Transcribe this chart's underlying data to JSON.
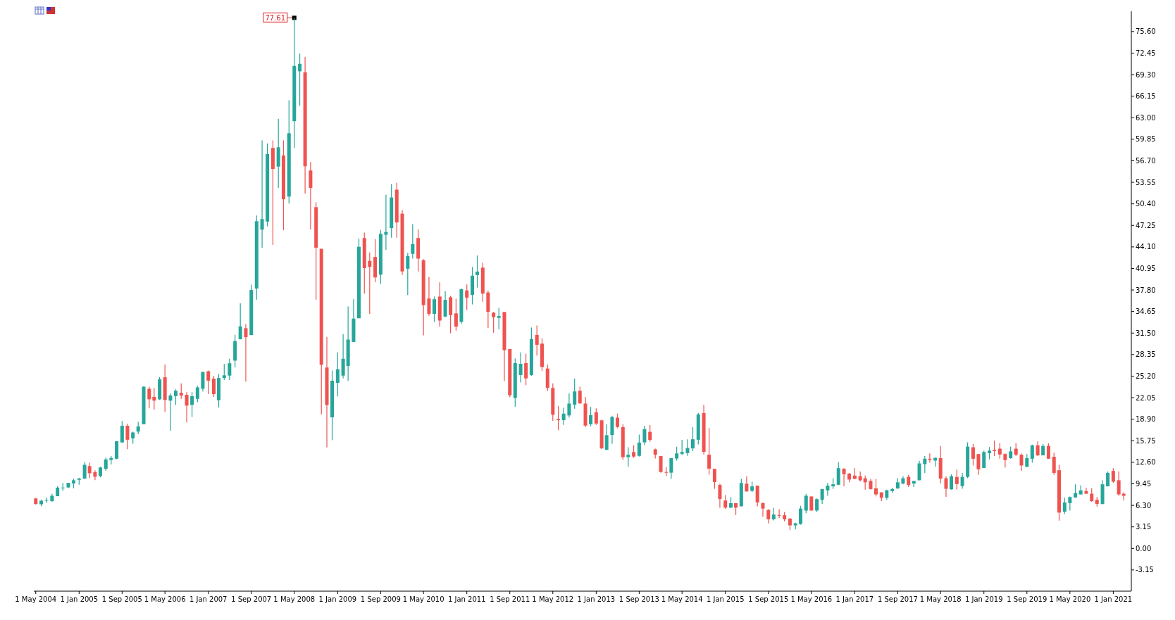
{
  "chart_data": {
    "type": "candlestick",
    "x": [
      "2004-05",
      "2004-06",
      "2004-07",
      "2004-08",
      "2004-09",
      "2004-10",
      "2004-11",
      "2004-12",
      "2005-01",
      "2005-02",
      "2005-03",
      "2005-04",
      "2005-05",
      "2005-06",
      "2005-07",
      "2005-08",
      "2005-09",
      "2005-10",
      "2005-11",
      "2005-12",
      "2006-01",
      "2006-02",
      "2006-03",
      "2006-04",
      "2006-05",
      "2006-06",
      "2006-07",
      "2006-08",
      "2006-09",
      "2006-10",
      "2006-11",
      "2006-12",
      "2007-01",
      "2007-02",
      "2007-03",
      "2007-04",
      "2007-05",
      "2007-06",
      "2007-07",
      "2007-08",
      "2007-09",
      "2007-10",
      "2007-11",
      "2007-12",
      "2008-01",
      "2008-02",
      "2008-03",
      "2008-04",
      "2008-05",
      "2008-06",
      "2008-07",
      "2008-08",
      "2008-09",
      "2008-10",
      "2008-11",
      "2008-12",
      "2009-01",
      "2009-02",
      "2009-03",
      "2009-04",
      "2009-05",
      "2009-06",
      "2009-07",
      "2009-08",
      "2009-09",
      "2009-10",
      "2009-11",
      "2009-12",
      "2010-01",
      "2010-02",
      "2010-03",
      "2010-04",
      "2010-05",
      "2010-06",
      "2010-07",
      "2010-08",
      "2010-09",
      "2010-10",
      "2010-11",
      "2010-12",
      "2011-01",
      "2011-02",
      "2011-03",
      "2011-04",
      "2011-05",
      "2011-06",
      "2011-07",
      "2011-08",
      "2011-09",
      "2011-10",
      "2011-11",
      "2011-12",
      "2012-01",
      "2012-02",
      "2012-03",
      "2012-04",
      "2012-05",
      "2012-06",
      "2012-07",
      "2012-08",
      "2012-09",
      "2012-10",
      "2012-11",
      "2012-12",
      "2013-01",
      "2013-02",
      "2013-03",
      "2013-04",
      "2013-05",
      "2013-06",
      "2013-07",
      "2013-08",
      "2013-09",
      "2013-10",
      "2013-11",
      "2013-12",
      "2014-01",
      "2014-02",
      "2014-03",
      "2014-04",
      "2014-05",
      "2014-06",
      "2014-07",
      "2014-08",
      "2014-09",
      "2014-10",
      "2014-11",
      "2014-12",
      "2015-01",
      "2015-02",
      "2015-03",
      "2015-04",
      "2015-05",
      "2015-06",
      "2015-07",
      "2015-08",
      "2015-09",
      "2015-10",
      "2015-11",
      "2015-12",
      "2016-01",
      "2016-02",
      "2016-03",
      "2016-04",
      "2016-05",
      "2016-06",
      "2016-07",
      "2016-08",
      "2016-09",
      "2016-10",
      "2016-11",
      "2016-12",
      "2017-01",
      "2017-02",
      "2017-03",
      "2017-04",
      "2017-05",
      "2017-06",
      "2017-07",
      "2017-08",
      "2017-09",
      "2017-10",
      "2017-11",
      "2017-12",
      "2018-01",
      "2018-02",
      "2018-03",
      "2018-04",
      "2018-05",
      "2018-06",
      "2018-07",
      "2018-08",
      "2018-09",
      "2018-10",
      "2018-11",
      "2018-12",
      "2019-01",
      "2019-02",
      "2019-03",
      "2019-04",
      "2019-05",
      "2019-06",
      "2019-07",
      "2019-08",
      "2019-09",
      "2019-10",
      "2019-11",
      "2019-12",
      "2020-01",
      "2020-02",
      "2020-03",
      "2020-04",
      "2020-05",
      "2020-06",
      "2020-07",
      "2020-08",
      "2020-09",
      "2020-10",
      "2020-11",
      "2020-12",
      "2021-01",
      "2021-02",
      "2021-03"
    ],
    "ohlc": [
      [
        7.3,
        7.4,
        6.4,
        6.5
      ],
      [
        6.46,
        7.12,
        6.17,
        6.98
      ],
      [
        7.0,
        7.44,
        6.66,
        7.1
      ],
      [
        6.92,
        7.97,
        6.82,
        7.7
      ],
      [
        7.64,
        9.08,
        7.64,
        8.89
      ],
      [
        8.85,
        9.58,
        8.43,
        8.9
      ],
      [
        8.92,
        9.6,
        8.82,
        9.58
      ],
      [
        9.51,
        10.2,
        8.79,
        9.97
      ],
      [
        10.04,
        10.33,
        9.31,
        10.23
      ],
      [
        10.2,
        12.63,
        10.2,
        12.23
      ],
      [
        12.04,
        12.53,
        10.26,
        10.99
      ],
      [
        11.15,
        11.44,
        10.0,
        10.49
      ],
      [
        10.59,
        11.94,
        10.4,
        11.84
      ],
      [
        11.64,
        13.32,
        11.35,
        13.02
      ],
      [
        12.95,
        13.51,
        12.27,
        13.22
      ],
      [
        13.12,
        15.68,
        13.05,
        15.68
      ],
      [
        15.51,
        18.63,
        15.41,
        17.94
      ],
      [
        17.94,
        18.24,
        14.53,
        15.9
      ],
      [
        16.1,
        17.06,
        15.32,
        16.96
      ],
      [
        17.09,
        18.53,
        16.7,
        17.84
      ],
      [
        18.17,
        23.75,
        18.17,
        23.65
      ],
      [
        23.35,
        23.65,
        20.5,
        21.81
      ],
      [
        22.17,
        23.45,
        20.3,
        21.62
      ],
      [
        21.81,
        25.03,
        21.71,
        24.73
      ],
      [
        25.03,
        26.9,
        20.01,
        21.71
      ],
      [
        21.62,
        22.67,
        17.19,
        22.37
      ],
      [
        22.27,
        23.26,
        20.99,
        23.06
      ],
      [
        22.76,
        24.14,
        21.88,
        22.37
      ],
      [
        22.47,
        22.86,
        18.43,
        20.89
      ],
      [
        20.99,
        22.86,
        19.22,
        22.27
      ],
      [
        21.88,
        23.75,
        21.39,
        23.55
      ],
      [
        23.35,
        25.81,
        22.96,
        25.81
      ],
      [
        25.91,
        26.01,
        22.57,
        24.54
      ],
      [
        24.83,
        25.23,
        22.17,
        22.57
      ],
      [
        21.68,
        25.52,
        20.6,
        24.93
      ],
      [
        24.93,
        26.99,
        24.63,
        25.32
      ],
      [
        25.28,
        27.74,
        24.62,
        27.08
      ],
      [
        27.47,
        31.25,
        26.46,
        30.33
      ],
      [
        30.59,
        35.86,
        30.59,
        32.48
      ],
      [
        32.21,
        32.79,
        24.4,
        30.9
      ],
      [
        31.21,
        38.59,
        31.21,
        37.8
      ],
      [
        38.02,
        48.69,
        36.39,
        47.86
      ],
      [
        46.63,
        59.68,
        43.99,
        48.17
      ],
      [
        47.81,
        59.24,
        47.11,
        57.7
      ],
      [
        58.58,
        59.68,
        44.39,
        55.5
      ],
      [
        55.85,
        62.84,
        52.74,
        58.67
      ],
      [
        57.48,
        59.68,
        46.54,
        51.07
      ],
      [
        51.46,
        65.56,
        50.45,
        60.73
      ],
      [
        62.49,
        77.61,
        58.58,
        70.57
      ],
      [
        69.78,
        72.38,
        64.73,
        70.88
      ],
      [
        69.65,
        71.89,
        51.9,
        55.9
      ],
      [
        55.28,
        56.51,
        46.63,
        52.74
      ],
      [
        49.92,
        50.63,
        36.39,
        43.99
      ],
      [
        43.82,
        43.82,
        19.61,
        26.86
      ],
      [
        26.46,
        30.94,
        14.77,
        20.97
      ],
      [
        19.17,
        26.02,
        15.83,
        24.53
      ],
      [
        24.22,
        28.66,
        22.24,
        26.2
      ],
      [
        25.28,
        31.34,
        24.88,
        27.74
      ],
      [
        26.68,
        35.38,
        24.49,
        30.55
      ],
      [
        30.2,
        36.44,
        30.2,
        33.62
      ],
      [
        33.67,
        45.31,
        33.67,
        44.12
      ],
      [
        45.4,
        46.19,
        37.27,
        41.0
      ],
      [
        42.06,
        43.29,
        34.32,
        41.18
      ],
      [
        42.63,
        45.22,
        38.94,
        39.64
      ],
      [
        40.04,
        46.59,
        38.72,
        46.01
      ],
      [
        45.88,
        51.73,
        43.64,
        46.28
      ],
      [
        46.85,
        53.31,
        45.44,
        51.33
      ],
      [
        52.47,
        53.48,
        45.44,
        47.68
      ],
      [
        48.96,
        49.48,
        40.0,
        40.52
      ],
      [
        40.91,
        43.21,
        37.07,
        42.75
      ],
      [
        43.08,
        47.44,
        42.39,
        44.52
      ],
      [
        45.4,
        46.68,
        40.52,
        42.39
      ],
      [
        42.16,
        42.32,
        31.17,
        35.59
      ],
      [
        36.55,
        39.7,
        34.02,
        34.31
      ],
      [
        34.31,
        36.84,
        33.13,
        36.45
      ],
      [
        36.84,
        38.91,
        32.44,
        33.33
      ],
      [
        33.92,
        37.63,
        33.82,
        36.35
      ],
      [
        36.74,
        36.94,
        31.46,
        34.12
      ],
      [
        34.38,
        36.55,
        31.85,
        32.44
      ],
      [
        33.13,
        38.02,
        32.84,
        37.92
      ],
      [
        37.73,
        38.61,
        34.91,
        36.68
      ],
      [
        37.07,
        41.17,
        35.69,
        39.89
      ],
      [
        39.98,
        42.85,
        38.15,
        40.49
      ],
      [
        41.07,
        41.76,
        36.09,
        37.27
      ],
      [
        37.43,
        37.73,
        32.25,
        34.61
      ],
      [
        34.48,
        34.58,
        31.56,
        33.82
      ],
      [
        33.72,
        35.17,
        32.05,
        33.99
      ],
      [
        34.58,
        34.58,
        24.47,
        29.0
      ],
      [
        29.16,
        29.16,
        22.11,
        22.41
      ],
      [
        22.01,
        27.79,
        20.73,
        27.1
      ],
      [
        25.36,
        28.67,
        24.28,
        27.0
      ],
      [
        27.1,
        28.48,
        23.88,
        24.87
      ],
      [
        25.36,
        32.31,
        25.26,
        30.64
      ],
      [
        31.23,
        32.61,
        28.21,
        29.79
      ],
      [
        29.95,
        30.74,
        25.95,
        26.54
      ],
      [
        26.31,
        26.9,
        23.0,
        23.49
      ],
      [
        23.46,
        24.14,
        18.67,
        19.55
      ],
      [
        18.93,
        20.8,
        17.29,
        18.76
      ],
      [
        18.76,
        20.6,
        18.08,
        19.71
      ],
      [
        19.45,
        22.67,
        19.16,
        21.19
      ],
      [
        21.03,
        24.83,
        20.44,
        22.96
      ],
      [
        23.06,
        23.65,
        21.13,
        21.22
      ],
      [
        21.19,
        22.17,
        17.77,
        17.97
      ],
      [
        18.17,
        20.7,
        17.87,
        19.51
      ],
      [
        19.91,
        20.5,
        18.07,
        18.27
      ],
      [
        18.73,
        18.82,
        14.53,
        14.63
      ],
      [
        14.43,
        18.14,
        14.33,
        16.56
      ],
      [
        16.59,
        19.41,
        15.31,
        19.22
      ],
      [
        19.12,
        19.71,
        17.58,
        17.77
      ],
      [
        17.74,
        18.14,
        12.95,
        13.35
      ],
      [
        13.35,
        14.79,
        11.97,
        13.71
      ],
      [
        14.1,
        15.08,
        13.25,
        13.44
      ],
      [
        13.54,
        16.66,
        13.44,
        15.48
      ],
      [
        15.51,
        17.94,
        15.12,
        17.45
      ],
      [
        17.05,
        18.04,
        15.61,
        15.87
      ],
      [
        14.49,
        14.59,
        13.15,
        13.71
      ],
      [
        13.51,
        13.51,
        11.08,
        11.18
      ],
      [
        11.18,
        11.87,
        10.59,
        11.08
      ],
      [
        11.08,
        13.21,
        10.2,
        13.21
      ],
      [
        13.15,
        14.89,
        12.85,
        13.9
      ],
      [
        13.84,
        15.87,
        13.64,
        14.1
      ],
      [
        13.94,
        15.97,
        13.54,
        14.69
      ],
      [
        14.63,
        17.74,
        14.23,
        15.97
      ],
      [
        15.9,
        19.81,
        15.22,
        19.61
      ],
      [
        19.81,
        20.99,
        13.74,
        14.13
      ],
      [
        13.71,
        17.64,
        10.79,
        11.67
      ],
      [
        11.64,
        11.64,
        8.72,
        9.7
      ],
      [
        9.28,
        9.47,
        5.96,
        7.24
      ],
      [
        7.01,
        7.8,
        5.77,
        5.96
      ],
      [
        5.96,
        7.5,
        5.96,
        6.62
      ],
      [
        6.62,
        6.62,
        4.88,
        5.96
      ],
      [
        6.16,
        10.16,
        6.16,
        9.57
      ],
      [
        9.47,
        10.56,
        8.33,
        8.33
      ],
      [
        8.42,
        9.77,
        8.23,
        9.08
      ],
      [
        9.18,
        9.18,
        6.16,
        6.72
      ],
      [
        6.62,
        6.72,
        4.65,
        5.83
      ],
      [
        5.63,
        5.73,
        3.67,
        4.26
      ],
      [
        4.26,
        5.93,
        4.09,
        4.95
      ],
      [
        4.88,
        5.73,
        4.45,
        4.81
      ],
      [
        4.85,
        5.34,
        3.96,
        4.26
      ],
      [
        4.36,
        4.45,
        2.68,
        3.37
      ],
      [
        3.37,
        3.77,
        2.78,
        3.67
      ],
      [
        3.57,
        6.23,
        3.47,
        5.83
      ],
      [
        5.54,
        7.99,
        5.14,
        7.7
      ],
      [
        7.6,
        7.6,
        5.54,
        5.54
      ],
      [
        5.54,
        7.31,
        5.34,
        7.21
      ],
      [
        7.11,
        8.69,
        6.52,
        8.69
      ],
      [
        8.49,
        9.57,
        7.7,
        9.18
      ],
      [
        9.08,
        10.26,
        8.69,
        9.38
      ],
      [
        9.31,
        12.62,
        9.24,
        11.74
      ],
      [
        11.64,
        11.74,
        9.08,
        10.85
      ],
      [
        10.95,
        11.05,
        9.67,
        10.07
      ],
      [
        10.66,
        11.74,
        10.16,
        10.16
      ],
      [
        10.56,
        11.25,
        9.77,
        9.97
      ],
      [
        10.26,
        10.66,
        8.59,
        9.67
      ],
      [
        9.87,
        10.16,
        8.59,
        8.69
      ],
      [
        8.78,
        10.16,
        7.6,
        7.9
      ],
      [
        8.2,
        8.2,
        6.92,
        7.41
      ],
      [
        7.41,
        8.59,
        7.11,
        8.49
      ],
      [
        8.39,
        8.88,
        8.1,
        8.69
      ],
      [
        8.78,
        10.26,
        8.69,
        9.67
      ],
      [
        9.48,
        10.56,
        9.38,
        10.26
      ],
      [
        10.46,
        10.75,
        8.98,
        9.28
      ],
      [
        9.48,
        9.87,
        8.98,
        9.87
      ],
      [
        9.97,
        12.82,
        9.97,
        12.43
      ],
      [
        12.33,
        13.51,
        11.05,
        13.12
      ],
      [
        13.12,
        13.9,
        12.53,
        12.95
      ],
      [
        12.85,
        13.31,
        11.97,
        13.25
      ],
      [
        13.21,
        14.99,
        9.51,
        10.2
      ],
      [
        10.26,
        10.52,
        7.54,
        8.72
      ],
      [
        8.65,
        10.85,
        8.59,
        10.56
      ],
      [
        10.46,
        11.54,
        8.62,
        9.41
      ],
      [
        9.11,
        11.05,
        8.72,
        10.46
      ],
      [
        10.46,
        15.51,
        10.26,
        14.89
      ],
      [
        14.79,
        15.28,
        12.13,
        13.12
      ],
      [
        13.8,
        13.8,
        10.75,
        11.57
      ],
      [
        11.77,
        14.3,
        11.77,
        14.1
      ],
      [
        13.94,
        14.82,
        13.02,
        14.3
      ],
      [
        14.4,
        15.77,
        13.51,
        14.23
      ],
      [
        14.59,
        15.38,
        13.12,
        13.74
      ],
      [
        13.8,
        13.9,
        11.84,
        12.92
      ],
      [
        13.21,
        14.89,
        13.12,
        14.2
      ],
      [
        14.59,
        15.38,
        13.51,
        13.71
      ],
      [
        13.71,
        13.87,
        11.34,
        12.13
      ],
      [
        11.93,
        13.8,
        11.93,
        13.21
      ],
      [
        13.12,
        15.18,
        12.53,
        15.08
      ],
      [
        15.08,
        15.67,
        13.51,
        13.61
      ],
      [
        13.61,
        15.28,
        13.61,
        14.99
      ],
      [
        14.99,
        15.38,
        13.12,
        13.12
      ],
      [
        13.41,
        14.0,
        10.75,
        11.05
      ],
      [
        11.44,
        12.23,
        4.06,
        5.24
      ],
      [
        5.37,
        7.41,
        5.04,
        6.72
      ],
      [
        6.62,
        7.6,
        5.54,
        7.51
      ],
      [
        7.44,
        9.38,
        7.44,
        8.1
      ],
      [
        7.9,
        9.21,
        7.9,
        8.49
      ],
      [
        8.39,
        8.88,
        8.0,
        8.0
      ],
      [
        8.0,
        8.78,
        6.82,
        6.92
      ],
      [
        7.11,
        7.51,
        6.13,
        6.52
      ],
      [
        6.49,
        9.97,
        6.49,
        9.38
      ],
      [
        9.08,
        11.25,
        9.08,
        11.05
      ],
      [
        11.34,
        11.74,
        9.61,
        9.77
      ],
      [
        9.97,
        11.25,
        7.7,
        7.9
      ],
      [
        8.0,
        8.2,
        7.01,
        7.7
      ]
    ],
    "colors": [
      "#ef5350",
      "#26a69a",
      "#26a69a",
      "#26a69a",
      "#26a69a",
      "#26a69a",
      "#26a69a",
      "#26a69a",
      "#26a69a",
      "#26a69a",
      "#ef5350",
      "#ef5350",
      "#26a69a",
      "#26a69a",
      "#26a69a",
      "#26a69a",
      "#26a69a",
      "#ef5350",
      "#26a69a",
      "#26a69a",
      "#26a69a",
      "#ef5350",
      "#ef5350",
      "#26a69a",
      "#ef5350",
      "#26a69a",
      "#26a69a",
      "#ef5350",
      "#ef5350",
      "#26a69a",
      "#26a69a",
      "#26a69a",
      "#ef5350",
      "#ef5350",
      "#26a69a",
      "#26a69a",
      "#26a69a",
      "#26a69a",
      "#26a69a",
      "#ef5350",
      "#26a69a",
      "#26a69a",
      "#26a69a",
      "#26a69a",
      "#ef5350",
      "#26a69a",
      "#ef5350",
      "#26a69a",
      "#26a69a",
      "#26a69a",
      "#ef5350",
      "#ef5350",
      "#ef5350",
      "#ef5350",
      "#ef5350",
      "#26a69a",
      "#26a69a",
      "#26a69a",
      "#26a69a",
      "#26a69a",
      "#26a69a",
      "#ef5350",
      "#ef5350",
      "#ef5350",
      "#26a69a",
      "#26a69a",
      "#26a69a",
      "#ef5350",
      "#ef5350",
      "#26a69a",
      "#26a69a",
      "#ef5350",
      "#ef5350",
      "#ef5350",
      "#26a69a",
      "#ef5350",
      "#26a69a",
      "#ef5350",
      "#ef5350",
      "#26a69a",
      "#ef5350",
      "#26a69a",
      "#26a69a",
      "#ef5350",
      "#ef5350",
      "#ef5350",
      "#26a69a",
      "#ef5350",
      "#ef5350",
      "#26a69a",
      "#26a69a",
      "#ef5350",
      "#26a69a",
      "#ef5350",
      "#ef5350",
      "#ef5350",
      "#ef5350",
      "#ef5350",
      "#26a69a",
      "#26a69a",
      "#26a69a",
      "#ef5350",
      "#ef5350",
      "#26a69a",
      "#ef5350",
      "#ef5350",
      "#26a69a",
      "#26a69a",
      "#ef5350",
      "#ef5350",
      "#26a69a",
      "#ef5350",
      "#26a69a",
      "#26a69a",
      "#ef5350",
      "#ef5350",
      "#ef5350",
      "#ef5350",
      "#26a69a",
      "#26a69a",
      "#26a69a",
      "#26a69a",
      "#26a69a",
      "#26a69a",
      "#ef5350",
      "#ef5350",
      "#ef5350",
      "#ef5350",
      "#ef5350",
      "#26a69a",
      "#ef5350",
      "#26a69a",
      "#ef5350",
      "#26a69a",
      "#ef5350",
      "#ef5350",
      "#ef5350",
      "#26a69a",
      "#ef5350",
      "#ef5350",
      "#ef5350",
      "#26a69a",
      "#26a69a",
      "#26a69a",
      "#ef5350",
      "#26a69a",
      "#26a69a",
      "#26a69a",
      "#26a69a",
      "#26a69a",
      "#ef5350",
      "#ef5350",
      "#ef5350",
      "#ef5350",
      "#ef5350",
      "#ef5350",
      "#ef5350",
      "#ef5350",
      "#26a69a",
      "#26a69a",
      "#26a69a",
      "#26a69a",
      "#ef5350",
      "#26a69a",
      "#26a69a",
      "#26a69a",
      "#ef5350",
      "#26a69a",
      "#ef5350",
      "#ef5350",
      "#26a69a",
      "#ef5350",
      "#26a69a",
      "#26a69a",
      "#ef5350",
      "#ef5350",
      "#26a69a",
      "#26a69a",
      "#ef5350",
      "#ef5350",
      "#ef5350",
      "#26a69a",
      "#ef5350",
      "#ef5350",
      "#26a69a",
      "#26a69a",
      "#ef5350",
      "#26a69a",
      "#ef5350",
      "#ef5350",
      "#ef5350",
      "#26a69a",
      "#26a69a",
      "#26a69a",
      "#26a69a",
      "#ef5350",
      "#ef5350",
      "#ef5350",
      "#26a69a",
      "#26a69a",
      "#ef5350",
      "#ef5350",
      "#ef5350"
    ],
    "xlim": [
      "2004-04-20",
      "2021-04-13"
    ],
    "xticks": [
      {
        "value": "2004-05",
        "label": "1 May 2004"
      },
      {
        "value": "2005-01",
        "label": "1 Jan 2005"
      },
      {
        "value": "2005-09",
        "label": "1 Sep 2005"
      },
      {
        "value": "2006-05",
        "label": "1 May 2006"
      },
      {
        "value": "2007-01",
        "label": "1 Jan 2007"
      },
      {
        "value": "2007-09",
        "label": "1 Sep 2007"
      },
      {
        "value": "2008-05",
        "label": "1 May 2008"
      },
      {
        "value": "2009-01",
        "label": "1 Jan 2009"
      },
      {
        "value": "2009-09",
        "label": "1 Sep 2009"
      },
      {
        "value": "2010-05",
        "label": "1 May 2010"
      },
      {
        "value": "2011-01",
        "label": "1 Jan 2011"
      },
      {
        "value": "2011-09",
        "label": "1 Sep 2011"
      },
      {
        "value": "2012-05",
        "label": "1 May 2012"
      },
      {
        "value": "2013-01",
        "label": "1 Jan 2013"
      },
      {
        "value": "2013-09",
        "label": "1 Sep 2013"
      },
      {
        "value": "2014-05",
        "label": "1 May 2014"
      },
      {
        "value": "2015-01",
        "label": "1 Jan 2015"
      },
      {
        "value": "2015-09",
        "label": "1 Sep 2015"
      },
      {
        "value": "2016-05",
        "label": "1 May 2016"
      },
      {
        "value": "2017-01",
        "label": "1 Jan 2017"
      },
      {
        "value": "2017-09",
        "label": "1 Sep 2017"
      },
      {
        "value": "2018-05",
        "label": "1 May 2018"
      },
      {
        "value": "2019-01",
        "label": "1 Jan 2019"
      },
      {
        "value": "2019-09",
        "label": "1 Sep 2019"
      },
      {
        "value": "2020-05",
        "label": "1 May 2020"
      },
      {
        "value": "2021-01",
        "label": "1 Jan 2021"
      }
    ],
    "ylim": [
      -6.25,
      78.57
    ],
    "yticks": [
      {
        "value": -3.15,
        "label": "-3.15"
      },
      {
        "value": 0,
        "label": "0.00"
      },
      {
        "value": 3.15,
        "label": "3.15"
      },
      {
        "value": 6.3,
        "label": "6.30"
      },
      {
        "value": 9.45,
        "label": "9.45"
      },
      {
        "value": 12.6,
        "label": "12.60"
      },
      {
        "value": 15.75,
        "label": "15.75"
      },
      {
        "value": 18.9,
        "label": "18.90"
      },
      {
        "value": 22.05,
        "label": "22.05"
      },
      {
        "value": 25.2,
        "label": "25.20"
      },
      {
        "value": 28.35,
        "label": "28.35"
      },
      {
        "value": 31.5,
        "label": "31.50"
      },
      {
        "value": 34.65,
        "label": "34.65"
      },
      {
        "value": 37.8,
        "label": "37.80"
      },
      {
        "value": 40.95,
        "label": "40.95"
      },
      {
        "value": 44.1,
        "label": "44.10"
      },
      {
        "value": 47.25,
        "label": "47.25"
      },
      {
        "value": 50.4,
        "label": "50.40"
      },
      {
        "value": 53.55,
        "label": "53.55"
      },
      {
        "value": 56.7,
        "label": "56.70"
      },
      {
        "value": 59.85,
        "label": "59.85"
      },
      {
        "value": 63,
        "label": "63.00"
      },
      {
        "value": 66.15,
        "label": "66.15"
      },
      {
        "value": 69.3,
        "label": "69.30"
      },
      {
        "value": 72.45,
        "label": "72.45"
      },
      {
        "value": 75.6,
        "label": "75.60"
      }
    ],
    "annotations": [
      {
        "text": "77.61",
        "x": "2008-05",
        "y": 77.61
      }
    ]
  }
}
